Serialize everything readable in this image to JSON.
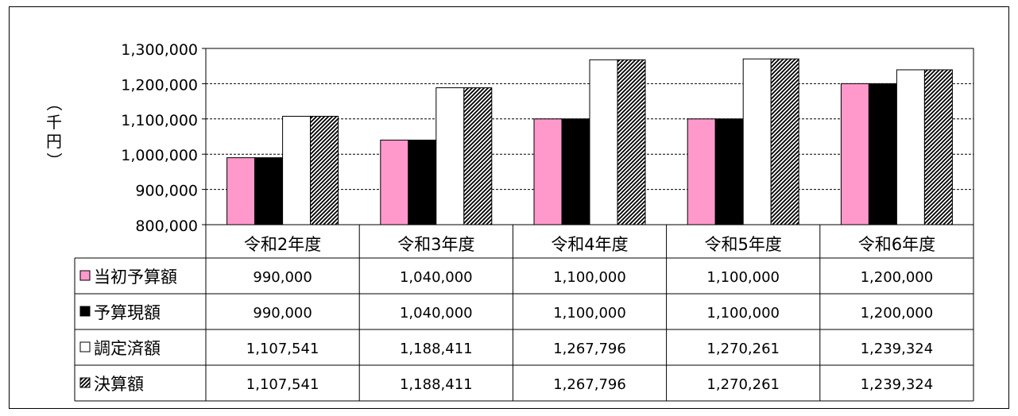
{
  "chart_data": {
    "type": "bar",
    "title": "",
    "xlabel": "",
    "ylabel": "（千円）",
    "ylim": [
      800000,
      1300000
    ],
    "yticks": [
      800000,
      900000,
      1000000,
      1100000,
      1200000,
      1300000
    ],
    "ytick_labels": [
      "800,000",
      "900,000",
      "1,000,000",
      "1,100,000",
      "1,200,000",
      "1,300,000"
    ],
    "grid": true,
    "categories": [
      "令和2年度",
      "令和3年度",
      "令和4年度",
      "令和5年度",
      "令和6年度"
    ],
    "series": [
      {
        "name": "当初予算額",
        "style": "pink",
        "color": "#ff99cc",
        "values": [
          990000,
          1040000,
          1100000,
          1100000,
          1200000
        ],
        "labels": [
          "990,000",
          "1,040,000",
          "1,100,000",
          "1,100,000",
          "1,200,000"
        ]
      },
      {
        "name": "予算現額",
        "style": "black",
        "color": "#000000",
        "values": [
          990000,
          1040000,
          1100000,
          1100000,
          1200000
        ],
        "labels": [
          "990,000",
          "1,040,000",
          "1,100,000",
          "1,100,000",
          "1,200,000"
        ]
      },
      {
        "name": "調定済額",
        "style": "white",
        "color": "#ffffff",
        "values": [
          1107541,
          1188411,
          1267796,
          1270261,
          1239324
        ],
        "labels": [
          "1,107,541",
          "1,188,411",
          "1,267,796",
          "1,270,261",
          "1,239,324"
        ]
      },
      {
        "name": "決算額",
        "style": "hatch",
        "color": "#000000",
        "values": [
          1107541,
          1188411,
          1267796,
          1270261,
          1239324
        ],
        "labels": [
          "1,107,541",
          "1,188,411",
          "1,267,796",
          "1,270,261",
          "1,239,324"
        ]
      }
    ],
    "legend": "data-table-left"
  }
}
